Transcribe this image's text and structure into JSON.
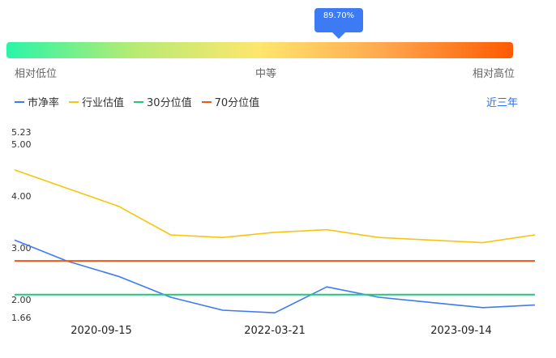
{
  "indicator": {
    "percent_label": "89.70%",
    "percent": 0.897
  },
  "scale_labels": {
    "low": "相对低位",
    "mid": "中等",
    "high": "相对高位"
  },
  "range_button": "近三年",
  "chart_data": {
    "type": "line",
    "series": [
      {
        "name": "市净率",
        "color": "#3f7bf0",
        "x": [
          0,
          10,
          20,
          30,
          40,
          50,
          60,
          70,
          80,
          90,
          100
        ],
        "values": [
          3.15,
          2.75,
          2.45,
          2.05,
          1.8,
          1.75,
          2.25,
          2.05,
          1.95,
          1.85,
          1.9
        ]
      },
      {
        "name": "行业估值",
        "color": "#f7c50f",
        "x": [
          0,
          10,
          20,
          30,
          40,
          50,
          60,
          70,
          80,
          90,
          100
        ],
        "values": [
          4.5,
          4.15,
          3.8,
          3.25,
          3.2,
          3.3,
          3.35,
          3.2,
          3.15,
          3.1,
          3.25
        ]
      },
      {
        "name": "30分位值",
        "color": "#1ec97f",
        "constant": 2.1
      },
      {
        "name": "70分位值",
        "color": "#f0581a",
        "constant": 2.75
      }
    ],
    "y_ticks": [
      "5.23",
      "5.00",
      "4.00",
      "3.00",
      "2.00",
      "1.66"
    ],
    "y_tick_values": [
      5.23,
      5.0,
      4.0,
      3.0,
      2.0,
      1.66
    ],
    "ylim": [
      1.66,
      5.23
    ],
    "x_ticks": [
      "2020-09-15",
      "2022-03-21",
      "2023-09-14"
    ],
    "grid": false,
    "legend": "top-left"
  }
}
